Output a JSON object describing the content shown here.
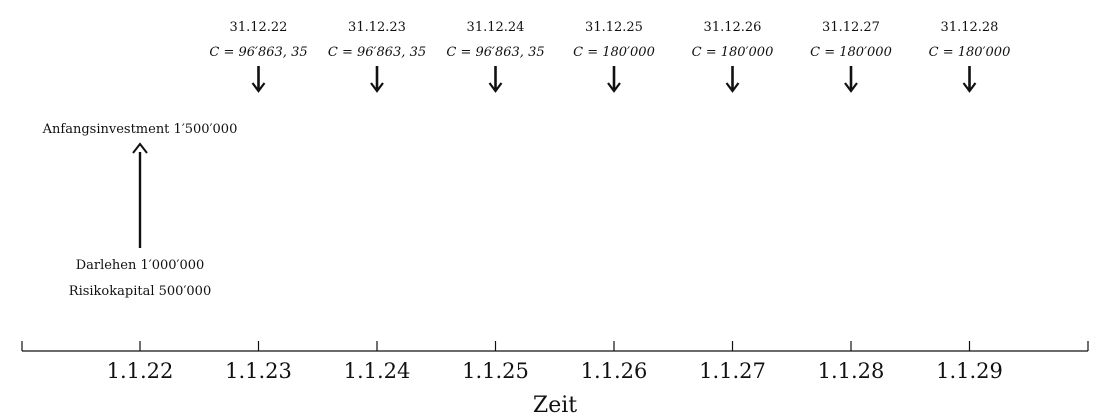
{
  "timeline": {
    "axis_title": "Zeit",
    "ticks": [
      "1.1.22",
      "1.1.23",
      "1.1.24",
      "1.1.25",
      "1.1.26",
      "1.1.27",
      "1.1.28",
      "1.1.29"
    ]
  },
  "investment": {
    "label": "Anfangsinvestment 1′500′000",
    "financing": [
      "Darlehen 1′000′000",
      "Risikokapital 500′000"
    ]
  },
  "payments": [
    {
      "date": "31.12.22",
      "amount": "C = 96′863, 35"
    },
    {
      "date": "31.12.23",
      "amount": "C = 96′863, 35"
    },
    {
      "date": "31.12.24",
      "amount": "C = 96′863, 35"
    },
    {
      "date": "31.12.25",
      "amount": "C = 180′000"
    },
    {
      "date": "31.12.26",
      "amount": "C = 180′000"
    },
    {
      "date": "31.12.27",
      "amount": "C = 180′000"
    },
    {
      "date": "31.12.28",
      "amount": "C = 180′000"
    }
  ]
}
